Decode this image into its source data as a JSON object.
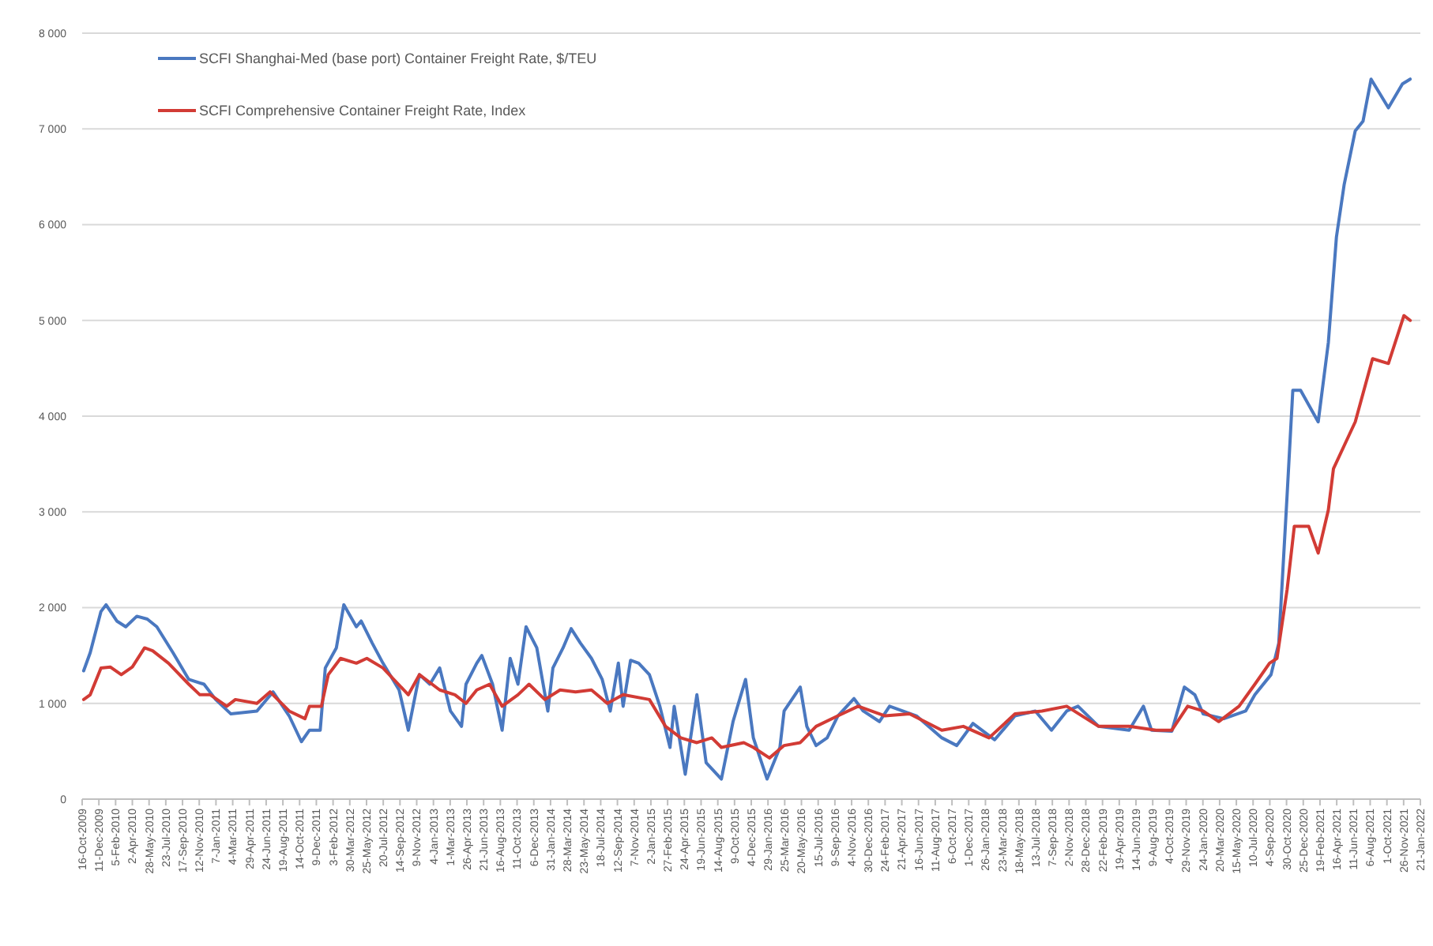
{
  "chart_data": {
    "type": "line",
    "legend": "top left",
    "grid": "y",
    "line_style": "solid",
    "xlim": [
      "2009-10-16",
      "2022-01-21"
    ],
    "ylim": [
      0,
      8000
    ],
    "yticks": [
      0,
      {
        "value": 1000,
        "label": "1 000"
      },
      {
        "value": 2000,
        "label": "2 000"
      },
      {
        "value": 3000,
        "label": "3 000"
      },
      {
        "value": 4000,
        "label": "4 000"
      },
      {
        "value": 5000,
        "label": "5 000"
      },
      {
        "value": 6000,
        "label": "6 000"
      },
      {
        "value": 7000,
        "label": "7 000"
      },
      {
        "value": 8000,
        "label": "8 000"
      }
    ],
    "xticks": [
      {
        "value": "2009-10-16",
        "label": "16-Oct-2009"
      },
      {
        "value": "2009-12-11",
        "label": "11-Dec-2009"
      },
      {
        "value": "2010-02-05",
        "label": "5-Feb-2010"
      },
      {
        "value": "2010-04-02",
        "label": "2-Apr-2010"
      },
      {
        "value": "2010-05-28",
        "label": "28-May-2010"
      },
      {
        "value": "2010-07-23",
        "label": "23-Jul-2010"
      },
      {
        "value": "2010-09-17",
        "label": "17-Sep-2010"
      },
      {
        "value": "2010-11-12",
        "label": "12-Nov-2010"
      },
      {
        "value": "2011-01-07",
        "label": "7-Jan-2011"
      },
      {
        "value": "2011-03-04",
        "label": "4-Mar-2011"
      },
      {
        "value": "2011-04-29",
        "label": "29-Apr-2011"
      },
      {
        "value": "2011-06-24",
        "label": "24-Jun-2011"
      },
      {
        "value": "2011-08-19",
        "label": "19-Aug-2011"
      },
      {
        "value": "2011-10-14",
        "label": "14-Oct-2011"
      },
      {
        "value": "2011-12-09",
        "label": "9-Dec-2011"
      },
      {
        "value": "2012-02-03",
        "label": "3-Feb-2012"
      },
      {
        "value": "2012-03-30",
        "label": "30-Mar-2012"
      },
      {
        "value": "2012-05-25",
        "label": "25-May-2012"
      },
      {
        "value": "2012-07-20",
        "label": "20-Jul-2012"
      },
      {
        "value": "2012-09-14",
        "label": "14-Sep-2012"
      },
      {
        "value": "2012-11-09",
        "label": "9-Nov-2012"
      },
      {
        "value": "2013-01-04",
        "label": "4-Jan-2013"
      },
      {
        "value": "2013-03-01",
        "label": "1-Mar-2013"
      },
      {
        "value": "2013-04-26",
        "label": "26-Apr-2013"
      },
      {
        "value": "2013-06-21",
        "label": "21-Jun-2013"
      },
      {
        "value": "2013-08-16",
        "label": "16-Aug-2013"
      },
      {
        "value": "2013-10-11",
        "label": "11-Oct-2013"
      },
      {
        "value": "2013-12-06",
        "label": "6-Dec-2013"
      },
      {
        "value": "2014-01-31",
        "label": "31-Jan-2014"
      },
      {
        "value": "2014-03-28",
        "label": "28-Mar-2014"
      },
      {
        "value": "2014-05-23",
        "label": "23-May-2014"
      },
      {
        "value": "2014-07-18",
        "label": "18-Jul-2014"
      },
      {
        "value": "2014-09-12",
        "label": "12-Sep-2014"
      },
      {
        "value": "2014-11-07",
        "label": "7-Nov-2014"
      },
      {
        "value": "2015-01-02",
        "label": "2-Jan-2015"
      },
      {
        "value": "2015-02-27",
        "label": "27-Feb-2015"
      },
      {
        "value": "2015-04-24",
        "label": "24-Apr-2015"
      },
      {
        "value": "2015-06-19",
        "label": "19-Jun-2015"
      },
      {
        "value": "2015-08-14",
        "label": "14-Aug-2015"
      },
      {
        "value": "2015-10-09",
        "label": "9-Oct-2015"
      },
      {
        "value": "2015-12-04",
        "label": "4-Dec-2015"
      },
      {
        "value": "2016-01-29",
        "label": "29-Jan-2016"
      },
      {
        "value": "2016-03-25",
        "label": "25-Mar-2016"
      },
      {
        "value": "2016-05-20",
        "label": "20-May-2016"
      },
      {
        "value": "2016-07-15",
        "label": "15-Jul-2016"
      },
      {
        "value": "2016-09-09",
        "label": "9-Sep-2016"
      },
      {
        "value": "2016-11-04",
        "label": "4-Nov-2016"
      },
      {
        "value": "2016-12-30",
        "label": "30-Dec-2016"
      },
      {
        "value": "2017-02-24",
        "label": "24-Feb-2017"
      },
      {
        "value": "2017-04-21",
        "label": "21-Apr-2017"
      },
      {
        "value": "2017-06-16",
        "label": "16-Jun-2017"
      },
      {
        "value": "2017-08-11",
        "label": "11-Aug-2017"
      },
      {
        "value": "2017-10-06",
        "label": "6-Oct-2017"
      },
      {
        "value": "2017-12-01",
        "label": "1-Dec-2017"
      },
      {
        "value": "2018-01-26",
        "label": "26-Jan-2018"
      },
      {
        "value": "2018-03-23",
        "label": "23-Mar-2018"
      },
      {
        "value": "2018-05-18",
        "label": "18-May-2018"
      },
      {
        "value": "2018-07-13",
        "label": "13-Jul-2018"
      },
      {
        "value": "2018-09-07",
        "label": "7-Sep-2018"
      },
      {
        "value": "2018-11-02",
        "label": "2-Nov-2018"
      },
      {
        "value": "2018-12-28",
        "label": "28-Dec-2018"
      },
      {
        "value": "2019-02-22",
        "label": "22-Feb-2019"
      },
      {
        "value": "2019-04-19",
        "label": "19-Apr-2019"
      },
      {
        "value": "2019-06-14",
        "label": "14-Jun-2019"
      },
      {
        "value": "2019-08-09",
        "label": "9-Aug-2019"
      },
      {
        "value": "2019-10-04",
        "label": "4-Oct-2019"
      },
      {
        "value": "2019-11-29",
        "label": "29-Nov-2019"
      },
      {
        "value": "2020-01-24",
        "label": "24-Jan-2020"
      },
      {
        "value": "2020-03-20",
        "label": "20-Mar-2020"
      },
      {
        "value": "2020-05-15",
        "label": "15-May-2020"
      },
      {
        "value": "2020-07-10",
        "label": "10-Jul-2020"
      },
      {
        "value": "2020-09-04",
        "label": "4-Sep-2020"
      },
      {
        "value": "2020-10-30",
        "label": "30-Oct-2020"
      },
      {
        "value": "2020-12-25",
        "label": "25-Dec-2020"
      },
      {
        "value": "2021-02-19",
        "label": "19-Feb-2021"
      },
      {
        "value": "2021-04-16",
        "label": "16-Apr-2021"
      },
      {
        "value": "2021-06-11",
        "label": "11-Jun-2021"
      },
      {
        "value": "2021-08-06",
        "label": "6-Aug-2021"
      },
      {
        "value": "2021-10-01",
        "label": "1-Oct-2021"
      },
      {
        "value": "2021-11-26",
        "label": "26-Nov-2021"
      },
      {
        "value": "2022-01-21",
        "label": "21-Jan-2022"
      }
    ],
    "series": [
      {
        "name": "SCFI Shanghai-Med (base port) Container Freight Rate, $/TEU",
        "color": "#4a78c0",
        "x": [
          "2009-10-21",
          "2009-11-12",
          "2009-12-18",
          "2010-01-04",
          "2010-02-09",
          "2010-03-11",
          "2010-04-17",
          "2010-05-22",
          "2010-06-23",
          "2010-08-16",
          "2010-10-08",
          "2010-11-28",
          "2011-01-06",
          "2011-02-26",
          "2011-05-24",
          "2011-07-17",
          "2011-09-09",
          "2011-10-20",
          "2011-11-16",
          "2011-12-22",
          "2012-01-08",
          "2012-02-14",
          "2012-03-10",
          "2012-04-21",
          "2012-05-07",
          "2012-06-13",
          "2012-07-19",
          "2012-09-11",
          "2012-10-12",
          "2012-11-18",
          "2012-12-23",
          "2013-01-25",
          "2013-03-02",
          "2013-04-08",
          "2013-04-23",
          "2013-05-29",
          "2013-06-15",
          "2013-07-21",
          "2013-08-22",
          "2013-09-18",
          "2013-10-14",
          "2013-11-10",
          "2013-12-16",
          "2014-01-22",
          "2014-02-08",
          "2014-03-14",
          "2014-04-10",
          "2014-05-11",
          "2014-06-17",
          "2014-07-23",
          "2014-08-19",
          "2014-09-15",
          "2014-10-01",
          "2014-10-26",
          "2014-11-22",
          "2014-12-28",
          "2015-02-01",
          "2015-03-07",
          "2015-03-21",
          "2015-04-27",
          "2015-06-05",
          "2015-07-06",
          "2015-08-26",
          "2015-10-04",
          "2015-11-15",
          "2015-12-11",
          "2016-01-26",
          "2016-03-09",
          "2016-03-23",
          "2016-05-16",
          "2016-06-07",
          "2016-07-08",
          "2016-08-14",
          "2016-09-19",
          "2016-11-12",
          "2016-12-13",
          "2017-02-05",
          "2017-03-11",
          "2017-06-09",
          "2017-09-02",
          "2017-10-22",
          "2017-12-15",
          "2018-02-26",
          "2018-05-05",
          "2018-07-12",
          "2018-09-04",
          "2018-10-25",
          "2018-12-02",
          "2019-02-09",
          "2019-05-22",
          "2019-07-09",
          "2019-08-05",
          "2019-10-12",
          "2019-11-23",
          "2019-12-28",
          "2020-01-25",
          "2020-04-03",
          "2020-06-15",
          "2020-07-16",
          "2020-09-08",
          "2020-10-04",
          "2020-11-01",
          "2020-11-20",
          "2020-12-16",
          "2021-02-13",
          "2021-03-19",
          "2021-04-15",
          "2021-05-11",
          "2021-06-17",
          "2021-07-13",
          "2021-08-09",
          "2021-10-06",
          "2021-11-22",
          "2021-12-18"
        ],
        "values": [
          1340,
          1530,
          1960,
          2030,
          1860,
          1800,
          1910,
          1880,
          1800,
          1530,
          1250,
          1200,
          1040,
          890,
          920,
          1120,
          870,
          600,
          720,
          720,
          1370,
          1580,
          2030,
          1800,
          1860,
          1630,
          1420,
          1140,
          720,
          1300,
          1200,
          1370,
          920,
          760,
          1200,
          1420,
          1500,
          1200,
          720,
          1470,
          1200,
          1800,
          1580,
          920,
          1370,
          1580,
          1780,
          1630,
          1470,
          1250,
          920,
          1420,
          970,
          1450,
          1420,
          1300,
          970,
          540,
          970,
          260,
          1090,
          380,
          210,
          810,
          1250,
          640,
          210,
          540,
          920,
          1170,
          760,
          560,
          640,
          870,
          1050,
          920,
          810,
          970,
          870,
          640,
          560,
          790,
          620,
          870,
          920,
          720,
          920,
          970,
          760,
          720,
          970,
          720,
          710,
          1170,
          1090,
          890,
          840,
          920,
          1090,
          1300,
          1630,
          3180,
          4270,
          4270,
          3940,
          4770,
          5870,
          6420,
          6980,
          7080,
          7520,
          7220,
          7470,
          7520
        ]
      },
      {
        "name": "SCFI Comprehensive Container Freight Rate, Index",
        "color": "#d23b35",
        "x": [
          "2009-10-21",
          "2009-11-12",
          "2009-12-18",
          "2010-01-18",
          "2010-02-24",
          "2010-04-02",
          "2010-05-13",
          "2010-06-09",
          "2010-08-01",
          "2010-10-08",
          "2010-11-14",
          "2010-12-19",
          "2011-02-12",
          "2011-03-13",
          "2011-05-24",
          "2011-07-07",
          "2011-09-09",
          "2011-11-01",
          "2011-11-16",
          "2011-12-26",
          "2012-01-18",
          "2012-02-28",
          "2012-04-21",
          "2012-05-26",
          "2012-07-19",
          "2012-10-12",
          "2012-11-18",
          "2013-01-25",
          "2013-03-17",
          "2013-04-23",
          "2013-05-29",
          "2013-07-11",
          "2013-08-22",
          "2013-10-14",
          "2013-11-20",
          "2014-01-12",
          "2014-03-04",
          "2014-04-25",
          "2014-06-17",
          "2014-08-09",
          "2014-10-01",
          "2014-12-28",
          "2015-02-20",
          "2015-04-12",
          "2015-06-05",
          "2015-07-25",
          "2015-08-26",
          "2015-11-09",
          "2015-12-11",
          "2016-02-03",
          "2016-03-23",
          "2016-05-16",
          "2016-07-08",
          "2016-09-19",
          "2016-11-26",
          "2017-02-24",
          "2017-05-17",
          "2017-09-02",
          "2017-11-13",
          "2018-02-07",
          "2018-05-05",
          "2018-08-03",
          "2018-10-25",
          "2019-02-09",
          "2019-05-22",
          "2019-08-20",
          "2019-10-12",
          "2019-12-04",
          "2020-01-25",
          "2020-03-17",
          "2020-05-24",
          "2020-07-16",
          "2020-09-03",
          "2020-09-28",
          "2020-11-01",
          "2020-11-25",
          "2021-01-12",
          "2021-02-13",
          "2021-03-19",
          "2021-04-05",
          "2021-06-17",
          "2021-08-14",
          "2021-10-06",
          "2021-11-27",
          "2021-12-18"
        ],
        "values": [
          1040,
          1090,
          1370,
          1380,
          1300,
          1380,
          1580,
          1550,
          1420,
          1200,
          1090,
          1090,
          970,
          1040,
          1000,
          1120,
          920,
          840,
          970,
          970,
          1300,
          1470,
          1420,
          1470,
          1370,
          1090,
          1300,
          1140,
          1090,
          1000,
          1140,
          1200,
          970,
          1090,
          1200,
          1040,
          1140,
          1120,
          1140,
          1000,
          1090,
          1040,
          760,
          640,
          590,
          640,
          540,
          590,
          540,
          430,
          560,
          590,
          760,
          870,
          970,
          870,
          890,
          720,
          760,
          640,
          890,
          920,
          970,
          760,
          760,
          720,
          720,
          970,
          920,
          810,
          970,
          1200,
          1420,
          1470,
          2190,
          2850,
          2850,
          2570,
          3020,
          3450,
          3940,
          4600,
          4550,
          5050,
          5000
        ]
      }
    ]
  }
}
